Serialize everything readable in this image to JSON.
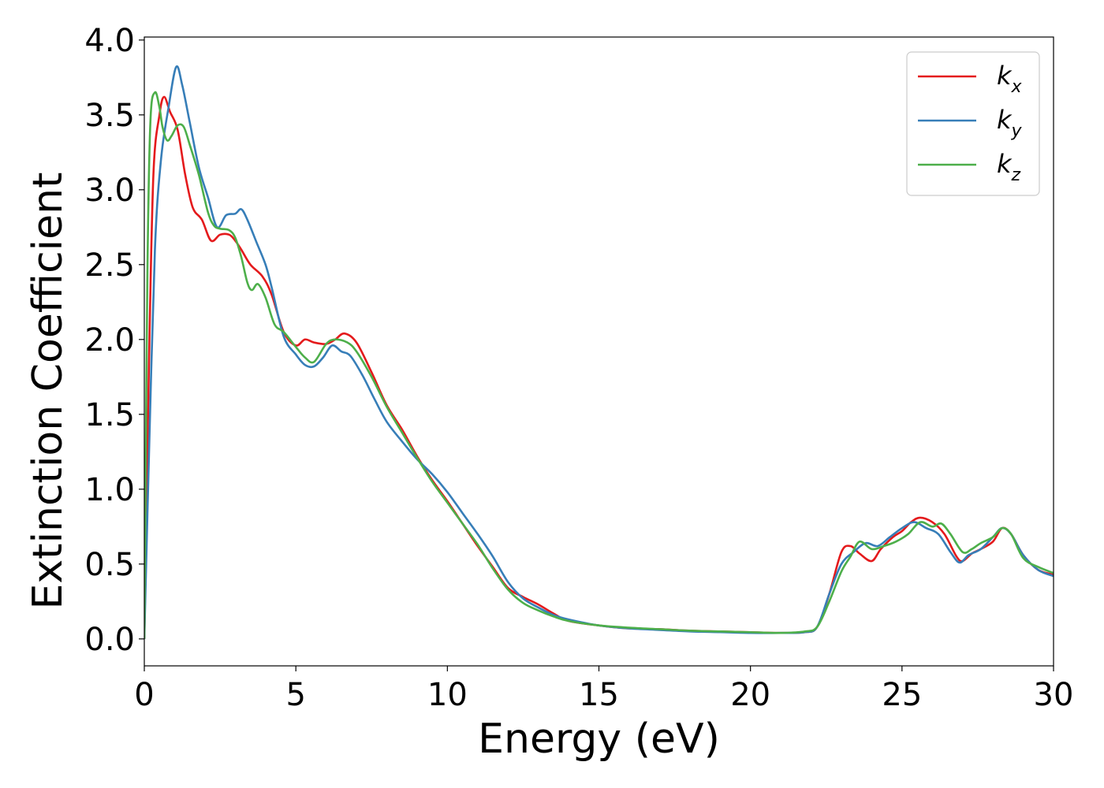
{
  "chart_data": {
    "type": "line",
    "title": "",
    "xlabel": "Energy (eV)",
    "ylabel": "Extinction Coefficient",
    "xlim": [
      0,
      30
    ],
    "ylim": [
      -0.18,
      4.02
    ],
    "xticks": [
      0,
      5,
      10,
      15,
      20,
      25,
      30
    ],
    "xtick_labels": [
      "0",
      "5",
      "10",
      "15",
      "20",
      "25",
      "30"
    ],
    "yticks": [
      0.0,
      0.5,
      1.0,
      1.5,
      2.0,
      2.5,
      3.0,
      3.5,
      4.0
    ],
    "ytick_labels": [
      "0.0",
      "0.5",
      "1.0",
      "1.5",
      "2.0",
      "2.5",
      "3.0",
      "3.5",
      "4.0"
    ],
    "grid": false,
    "legend_position": "top-right",
    "series": [
      {
        "name": "k",
        "subscript": "x",
        "color": "#e41a1c",
        "x": [
          0,
          0.15,
          0.3,
          0.5,
          0.65,
          0.85,
          1.1,
          1.35,
          1.6,
          1.9,
          2.2,
          2.5,
          2.8,
          3.0,
          3.2,
          3.5,
          3.9,
          4.2,
          4.6,
          5.0,
          5.3,
          5.6,
          6.0,
          6.3,
          6.6,
          7.0,
          7.5,
          8.0,
          8.5,
          9.0,
          9.5,
          10.0,
          10.5,
          11.0,
          11.5,
          12.0,
          12.5,
          13.0,
          13.5,
          14.0,
          15.0,
          16.0,
          17.0,
          18.0,
          19.0,
          20.0,
          21.0,
          21.8,
          22.2,
          22.6,
          23.0,
          23.3,
          23.6,
          24.0,
          24.3,
          24.7,
          25.0,
          25.3,
          25.6,
          26.0,
          26.4,
          26.8,
          27.0,
          27.3,
          27.6,
          28.0,
          28.3,
          28.6,
          29.0,
          29.5,
          30.0
        ],
        "y": [
          0.0,
          1.8,
          3.1,
          3.5,
          3.62,
          3.52,
          3.4,
          3.1,
          2.88,
          2.8,
          2.66,
          2.7,
          2.7,
          2.66,
          2.6,
          2.5,
          2.42,
          2.3,
          2.05,
          1.96,
          2.0,
          1.98,
          1.97,
          2.0,
          2.04,
          1.98,
          1.78,
          1.56,
          1.4,
          1.22,
          1.06,
          0.92,
          0.77,
          0.62,
          0.48,
          0.34,
          0.28,
          0.23,
          0.17,
          0.12,
          0.09,
          0.07,
          0.065,
          0.055,
          0.05,
          0.045,
          0.04,
          0.045,
          0.08,
          0.3,
          0.58,
          0.62,
          0.57,
          0.52,
          0.6,
          0.68,
          0.72,
          0.78,
          0.81,
          0.78,
          0.7,
          0.55,
          0.52,
          0.57,
          0.6,
          0.65,
          0.74,
          0.7,
          0.56,
          0.46,
          0.43
        ]
      },
      {
        "name": "k",
        "subscript": "y",
        "color": "#377eb8",
        "x": [
          0,
          0.15,
          0.35,
          0.55,
          0.8,
          1.05,
          1.25,
          1.5,
          1.8,
          2.1,
          2.4,
          2.7,
          3.0,
          3.2,
          3.4,
          3.7,
          4.0,
          4.2,
          4.6,
          5.0,
          5.3,
          5.6,
          5.9,
          6.2,
          6.5,
          6.8,
          7.2,
          7.6,
          8.0,
          8.5,
          9.0,
          9.5,
          10.0,
          10.5,
          11.0,
          11.5,
          12.0,
          12.5,
          13.0,
          13.5,
          14.0,
          15.0,
          16.0,
          17.0,
          18.0,
          19.0,
          20.0,
          21.0,
          21.8,
          22.2,
          22.6,
          23.0,
          23.4,
          23.8,
          24.2,
          24.6,
          25.0,
          25.4,
          25.8,
          26.2,
          26.6,
          26.9,
          27.2,
          27.6,
          28.0,
          28.3,
          28.6,
          29.0,
          29.5,
          30.0
        ],
        "y": [
          0.0,
          1.2,
          2.6,
          3.2,
          3.55,
          3.82,
          3.7,
          3.45,
          3.15,
          2.95,
          2.75,
          2.83,
          2.84,
          2.87,
          2.8,
          2.65,
          2.5,
          2.35,
          2.02,
          1.9,
          1.83,
          1.82,
          1.88,
          1.96,
          1.92,
          1.89,
          1.76,
          1.6,
          1.45,
          1.32,
          1.2,
          1.1,
          0.98,
          0.84,
          0.7,
          0.55,
          0.38,
          0.27,
          0.21,
          0.16,
          0.13,
          0.09,
          0.07,
          0.06,
          0.05,
          0.045,
          0.04,
          0.04,
          0.045,
          0.08,
          0.3,
          0.5,
          0.58,
          0.64,
          0.62,
          0.68,
          0.74,
          0.78,
          0.74,
          0.7,
          0.58,
          0.51,
          0.56,
          0.6,
          0.68,
          0.74,
          0.7,
          0.56,
          0.46,
          0.42
        ]
      },
      {
        "name": "k",
        "subscript": "z",
        "color": "#4daf4a",
        "x": [
          0,
          0.1,
          0.2,
          0.35,
          0.5,
          0.6,
          0.75,
          0.9,
          1.1,
          1.3,
          1.5,
          1.8,
          2.1,
          2.3,
          2.5,
          2.8,
          3.0,
          3.2,
          3.4,
          3.55,
          3.75,
          4.0,
          4.3,
          4.6,
          5.0,
          5.3,
          5.6,
          6.0,
          6.3,
          6.7,
          7.0,
          7.5,
          8.0,
          8.5,
          9.0,
          9.5,
          10.0,
          10.5,
          11.0,
          11.5,
          12.0,
          12.5,
          13.0,
          13.5,
          14.0,
          15.0,
          16.0,
          17.0,
          18.0,
          19.0,
          20.0,
          21.0,
          21.8,
          22.2,
          22.6,
          23.0,
          23.3,
          23.6,
          24.0,
          24.4,
          24.8,
          25.2,
          25.6,
          26.0,
          26.3,
          26.6,
          27.0,
          27.3,
          27.6,
          28.0,
          28.3,
          28.6,
          29.0,
          29.5,
          30.0
        ],
        "y": [
          0.0,
          2.4,
          3.45,
          3.65,
          3.55,
          3.42,
          3.33,
          3.36,
          3.43,
          3.42,
          3.3,
          3.1,
          2.85,
          2.76,
          2.74,
          2.73,
          2.68,
          2.55,
          2.38,
          2.33,
          2.37,
          2.28,
          2.1,
          2.05,
          1.95,
          1.88,
          1.85,
          1.97,
          2.0,
          1.98,
          1.92,
          1.75,
          1.55,
          1.38,
          1.21,
          1.05,
          0.91,
          0.77,
          0.63,
          0.47,
          0.33,
          0.24,
          0.19,
          0.15,
          0.12,
          0.09,
          0.075,
          0.065,
          0.055,
          0.05,
          0.045,
          0.04,
          0.05,
          0.08,
          0.25,
          0.45,
          0.55,
          0.65,
          0.6,
          0.62,
          0.65,
          0.7,
          0.78,
          0.75,
          0.77,
          0.7,
          0.58,
          0.6,
          0.64,
          0.68,
          0.74,
          0.7,
          0.54,
          0.48,
          0.44
        ]
      }
    ]
  }
}
